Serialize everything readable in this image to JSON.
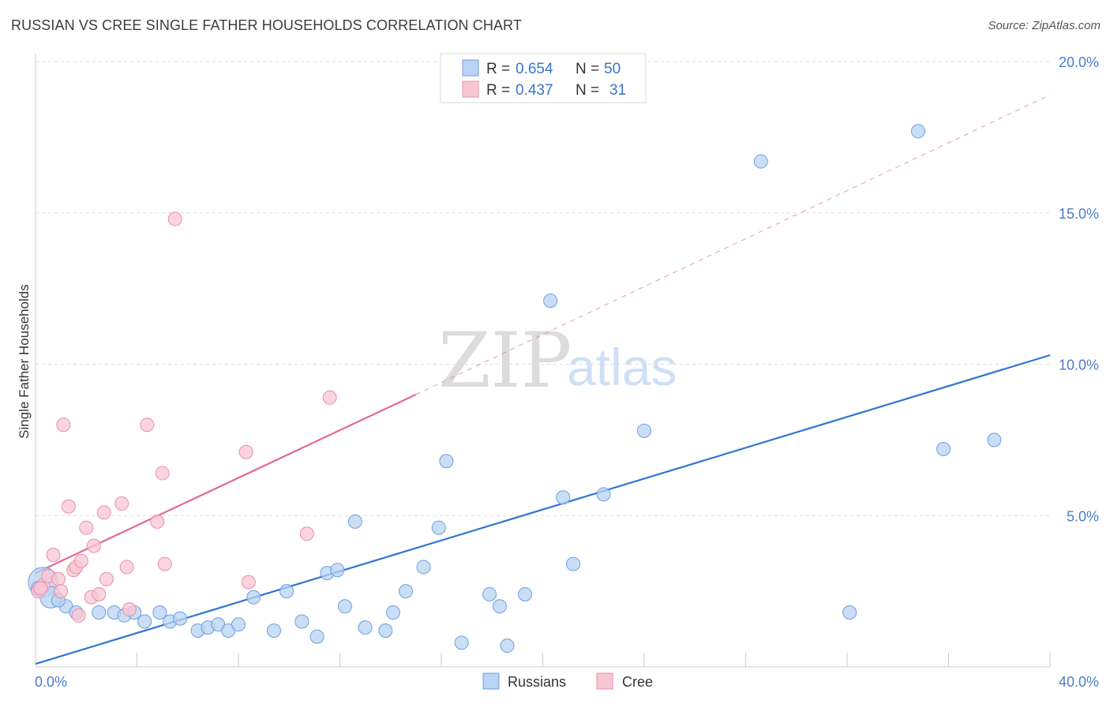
{
  "header": {
    "title": "RUSSIAN VS CREE SINGLE FATHER HOUSEHOLDS CORRELATION CHART",
    "source": "Source: ZipAtlas.com"
  },
  "watermark": {
    "zip": "ZIP",
    "atlas": "atlas"
  },
  "legend": {
    "russians": {
      "r_label": "R =",
      "r_value": "0.654",
      "n_label": "N =",
      "n_value": "50"
    },
    "cree": {
      "r_label": "R =",
      "r_value": "0.437",
      "n_label": "N =",
      "n_value": "31"
    }
  },
  "bottom_legend": {
    "russians": "Russians",
    "cree": "Cree"
  },
  "colors": {
    "russians_fill": "#b8d3f3",
    "russians_stroke": "#6f9fdc",
    "russians_line": "#2f76d2",
    "cree_fill": "#f9c6d4",
    "cree_stroke": "#e98fa9",
    "cree_line": "#e36a94",
    "grid": "#dddddd",
    "axis_text": "#4a7ccc"
  },
  "chart_data": {
    "type": "scatter",
    "title": "RUSSIAN VS CREE SINGLE FATHER HOUSEHOLDS CORRELATION CHART",
    "xlabel": "",
    "ylabel": "Single Father Households",
    "xlim": [
      0,
      40
    ],
    "ylim": [
      0,
      20
    ],
    "x_tick_labels": [
      "0.0%",
      "40.0%"
    ],
    "y_ticks": [
      {
        "value": 5,
        "label": "5.0%"
      },
      {
        "value": 10,
        "label": "10.0%"
      },
      {
        "value": 15,
        "label": "15.0%"
      },
      {
        "value": 20,
        "label": "20.0%"
      }
    ],
    "series": [
      {
        "name": "Russians",
        "r": 0.654,
        "n": 50,
        "trend": {
          "x": [
            0,
            40
          ],
          "y": [
            0.1,
            10.3
          ],
          "dashed_extension": false
        },
        "points": [
          {
            "x": 0.3,
            "y": 2.8,
            "size": 2.2
          },
          {
            "x": 0.6,
            "y": 2.3,
            "size": 1.6
          },
          {
            "x": 1.2,
            "y": 2.0
          },
          {
            "x": 1.6,
            "y": 1.8
          },
          {
            "x": 2.5,
            "y": 1.8
          },
          {
            "x": 3.1,
            "y": 1.8
          },
          {
            "x": 3.5,
            "y": 1.7
          },
          {
            "x": 3.9,
            "y": 1.8
          },
          {
            "x": 4.3,
            "y": 1.5
          },
          {
            "x": 4.9,
            "y": 1.8
          },
          {
            "x": 5.3,
            "y": 1.5
          },
          {
            "x": 5.7,
            "y": 1.6
          },
          {
            "x": 6.4,
            "y": 1.2
          },
          {
            "x": 6.8,
            "y": 1.3
          },
          {
            "x": 7.2,
            "y": 1.4
          },
          {
            "x": 7.6,
            "y": 1.2
          },
          {
            "x": 8.0,
            "y": 1.4
          },
          {
            "x": 8.6,
            "y": 2.3
          },
          {
            "x": 9.4,
            "y": 1.2
          },
          {
            "x": 9.9,
            "y": 2.5
          },
          {
            "x": 10.5,
            "y": 1.5
          },
          {
            "x": 11.1,
            "y": 1.0
          },
          {
            "x": 11.5,
            "y": 3.1
          },
          {
            "x": 11.9,
            "y": 3.2
          },
          {
            "x": 12.2,
            "y": 2.0
          },
          {
            "x": 12.6,
            "y": 4.8
          },
          {
            "x": 13.0,
            "y": 1.3
          },
          {
            "x": 13.8,
            "y": 1.2
          },
          {
            "x": 14.1,
            "y": 1.8
          },
          {
            "x": 14.6,
            "y": 2.5
          },
          {
            "x": 15.3,
            "y": 3.3
          },
          {
            "x": 15.9,
            "y": 4.6
          },
          {
            "x": 16.2,
            "y": 6.8
          },
          {
            "x": 16.8,
            "y": 0.8
          },
          {
            "x": 17.9,
            "y": 2.4
          },
          {
            "x": 18.3,
            "y": 2.0
          },
          {
            "x": 18.6,
            "y": 0.7
          },
          {
            "x": 19.3,
            "y": 2.4
          },
          {
            "x": 20.3,
            "y": 12.1
          },
          {
            "x": 20.8,
            "y": 5.6
          },
          {
            "x": 21.2,
            "y": 3.4
          },
          {
            "x": 22.4,
            "y": 5.7
          },
          {
            "x": 24.0,
            "y": 7.8
          },
          {
            "x": 28.6,
            "y": 16.7
          },
          {
            "x": 32.1,
            "y": 1.8
          },
          {
            "x": 34.8,
            "y": 17.7
          },
          {
            "x": 35.8,
            "y": 7.2
          },
          {
            "x": 37.8,
            "y": 7.5
          },
          {
            "x": 0.1,
            "y": 2.6
          },
          {
            "x": 0.9,
            "y": 2.2
          }
        ]
      },
      {
        "name": "Cree",
        "r": 0.437,
        "n": 31,
        "trend": {
          "x": [
            0,
            15
          ],
          "y": [
            3.1,
            9.0
          ],
          "dashed_extension": {
            "x": [
              15,
              40
            ],
            "y": [
              9.0,
              18.9
            ]
          }
        },
        "points": [
          {
            "x": 0.1,
            "y": 2.5
          },
          {
            "x": 0.3,
            "y": 2.7
          },
          {
            "x": 0.5,
            "y": 3.0
          },
          {
            "x": 0.7,
            "y": 3.7
          },
          {
            "x": 0.9,
            "y": 2.9
          },
          {
            "x": 1.0,
            "y": 2.5
          },
          {
            "x": 1.1,
            "y": 8.0
          },
          {
            "x": 1.3,
            "y": 5.3
          },
          {
            "x": 1.5,
            "y": 3.2
          },
          {
            "x": 1.6,
            "y": 3.3
          },
          {
            "x": 1.7,
            "y": 1.7
          },
          {
            "x": 1.8,
            "y": 3.5
          },
          {
            "x": 2.0,
            "y": 4.6
          },
          {
            "x": 2.2,
            "y": 2.3
          },
          {
            "x": 2.3,
            "y": 4.0
          },
          {
            "x": 2.5,
            "y": 2.4
          },
          {
            "x": 2.7,
            "y": 5.1
          },
          {
            "x": 2.8,
            "y": 2.9
          },
          {
            "x": 3.4,
            "y": 5.4
          },
          {
            "x": 3.6,
            "y": 3.3
          },
          {
            "x": 3.7,
            "y": 1.9
          },
          {
            "x": 4.4,
            "y": 8.0
          },
          {
            "x": 4.8,
            "y": 4.8
          },
          {
            "x": 5.0,
            "y": 6.4
          },
          {
            "x": 5.1,
            "y": 3.4
          },
          {
            "x": 5.5,
            "y": 14.8
          },
          {
            "x": 8.3,
            "y": 7.1
          },
          {
            "x": 8.4,
            "y": 2.8
          },
          {
            "x": 10.7,
            "y": 4.4
          },
          {
            "x": 11.6,
            "y": 8.9
          },
          {
            "x": 0.2,
            "y": 2.6
          }
        ]
      }
    ]
  }
}
